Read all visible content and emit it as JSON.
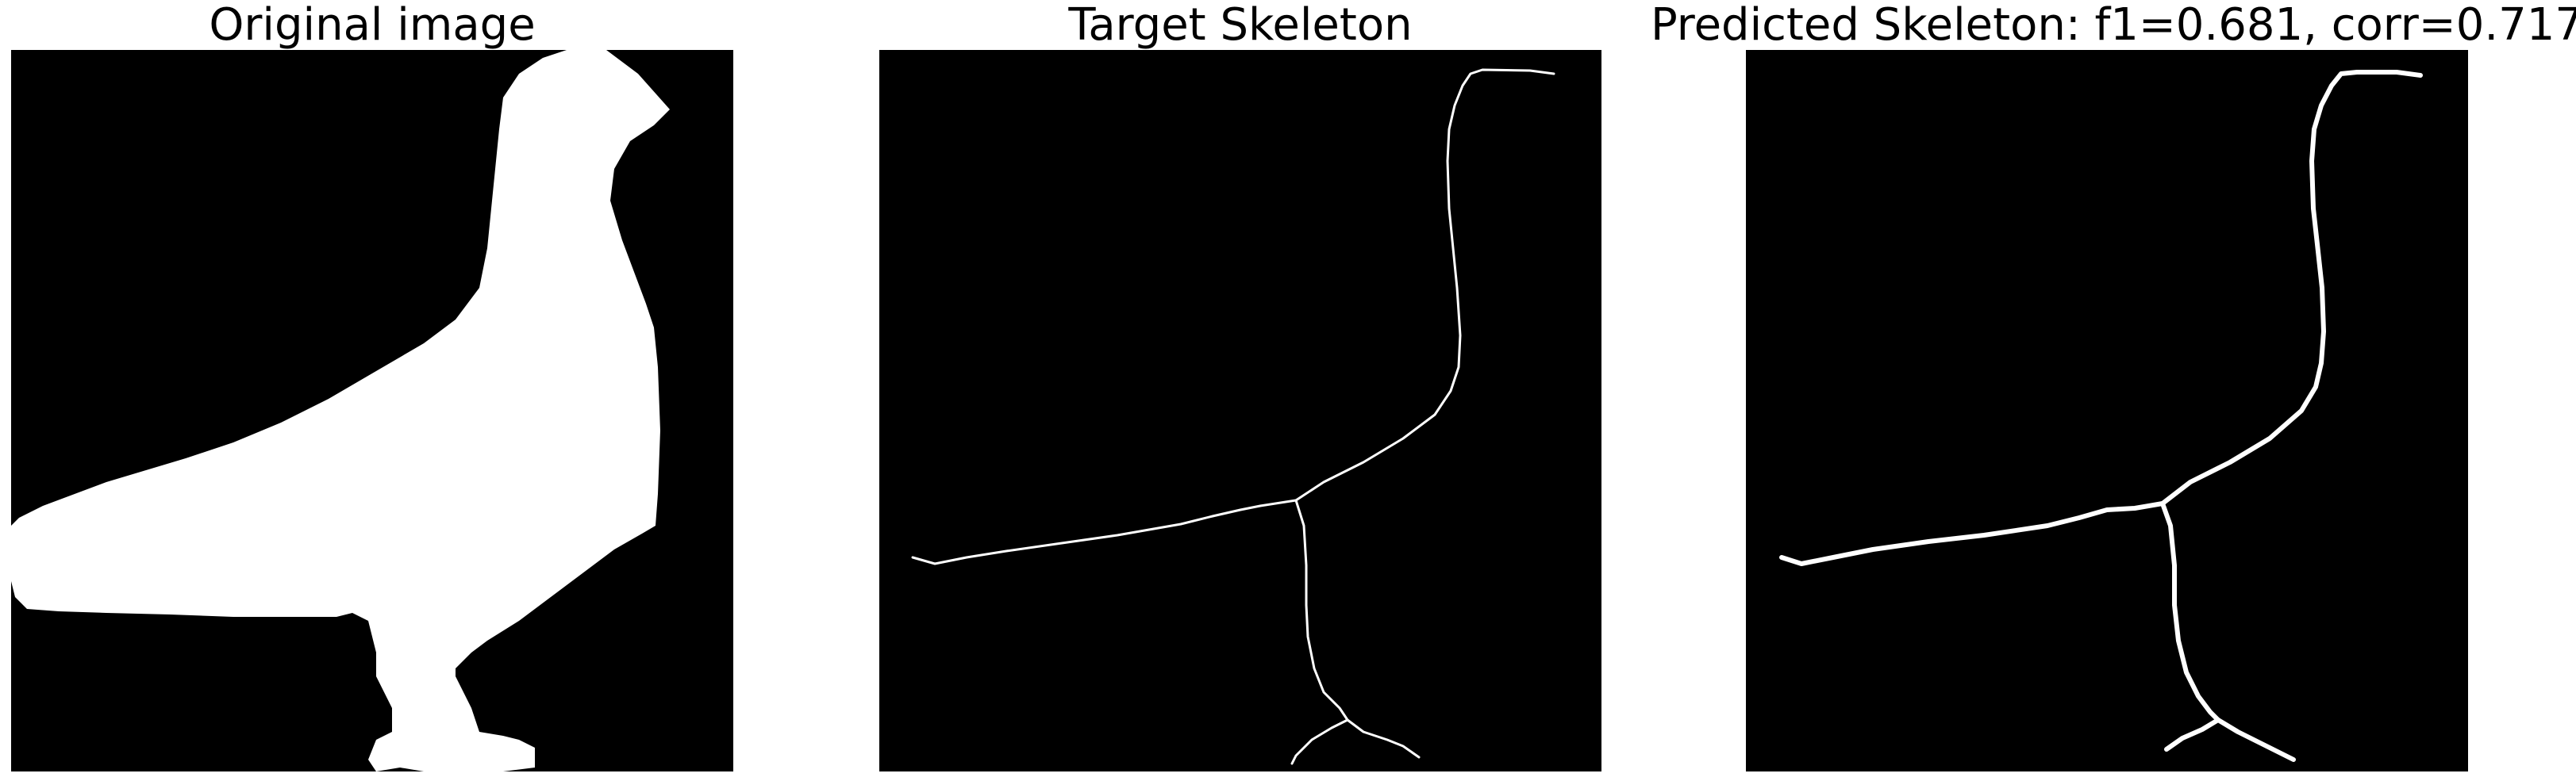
{
  "panels": [
    {
      "title": "Original image"
    },
    {
      "title": "Target Skeleton"
    },
    {
      "title": "Predicted Skeleton: f1=0.681, corr=0.717"
    }
  ],
  "colors": {
    "background": "#000000",
    "foreground": "#ffffff"
  }
}
